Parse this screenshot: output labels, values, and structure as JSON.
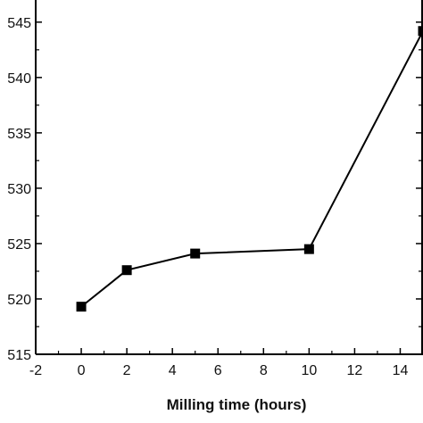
{
  "chart_data": {
    "type": "line",
    "title": "",
    "xlabel": "Milling time (hours)",
    "ylabel": "",
    "x_ticks": [
      "-2",
      "0",
      "2",
      "4",
      "6",
      "8",
      "10",
      "12",
      "14"
    ],
    "y_ticks": [
      "515",
      "520",
      "525",
      "530",
      "535",
      "540",
      "545"
    ],
    "xlim": [
      -2,
      15
    ],
    "ylim": [
      515,
      547
    ],
    "grid": false,
    "legend": "none",
    "series": [
      {
        "x": [
          0,
          2,
          5,
          10,
          15
        ],
        "y": [
          519.3,
          522.6,
          524.1,
          524.5,
          544.2
        ]
      }
    ],
    "line_color": "#000000",
    "marker": "square"
  }
}
